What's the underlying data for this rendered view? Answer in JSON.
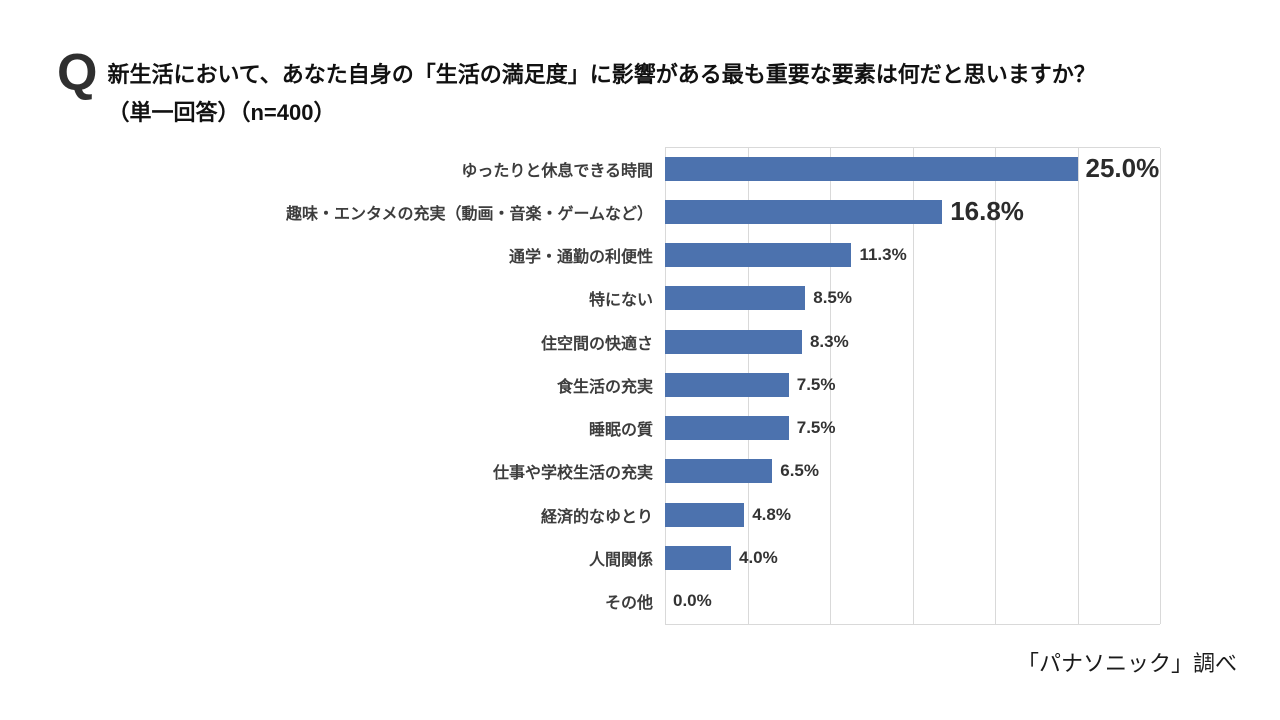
{
  "header": {
    "q_mark": "Q",
    "title": "新生活において、あなた自身の「生活の満足度」に影響がある最も重要な要素は何だと思いますか？",
    "subtitle": "（単一回答）（n=400）"
  },
  "footer": {
    "source": "「パナソニック」調べ"
  },
  "chart_data": {
    "type": "bar",
    "orientation": "horizontal",
    "title": "新生活において、あなた自身の「生活の満足度」に影響がある最も重要な要素は何だと思いますか？（単一回答）（n=400）",
    "xlabel": "",
    "ylabel": "",
    "xlim": [
      0,
      30
    ],
    "gridline_step_pct": 5,
    "grid": true,
    "legend": false,
    "bar_color": "#4c72ae",
    "gridline_color": "#d9d9d9",
    "categories": [
      "ゆったりと休息できる時間",
      "趣味・エンタメの充実（動画・音楽・ゲームなど）",
      "通学・通勤の利便性",
      "特にない",
      "住空間の快適さ",
      "食生活の充実",
      "睡眠の質",
      "仕事や学校生活の充実",
      "経済的なゆとり",
      "人間関係",
      "その他"
    ],
    "values": [
      25.0,
      16.8,
      11.3,
      8.5,
      8.3,
      7.5,
      7.5,
      6.5,
      4.8,
      4.0,
      0.0
    ],
    "rows": [
      {
        "label": "ゆったりと休息できる時間",
        "value": 25.0,
        "display": "25.0%",
        "big": true
      },
      {
        "label": "趣味・エンタメの充実（動画・音楽・ゲームなど）",
        "value": 16.8,
        "display": "16.8%",
        "big": true
      },
      {
        "label": "通学・通勤の利便性",
        "value": 11.3,
        "display": "11.3%",
        "big": false
      },
      {
        "label": "特にない",
        "value": 8.5,
        "display": "8.5%",
        "big": false
      },
      {
        "label": "住空間の快適さ",
        "value": 8.3,
        "display": "8.3%",
        "big": false
      },
      {
        "label": "食生活の充実",
        "value": 7.5,
        "display": "7.5%",
        "big": false
      },
      {
        "label": "睡眠の質",
        "value": 7.5,
        "display": "7.5%",
        "big": false
      },
      {
        "label": "仕事や学校生活の充実",
        "value": 6.5,
        "display": "6.5%",
        "big": false
      },
      {
        "label": "経済的なゆとり",
        "value": 4.8,
        "display": "4.8%",
        "big": false
      },
      {
        "label": "人間関係",
        "value": 4.0,
        "display": "4.0%",
        "big": false
      },
      {
        "label": "その他",
        "value": 0.0,
        "display": "0.0%",
        "big": false
      }
    ]
  }
}
